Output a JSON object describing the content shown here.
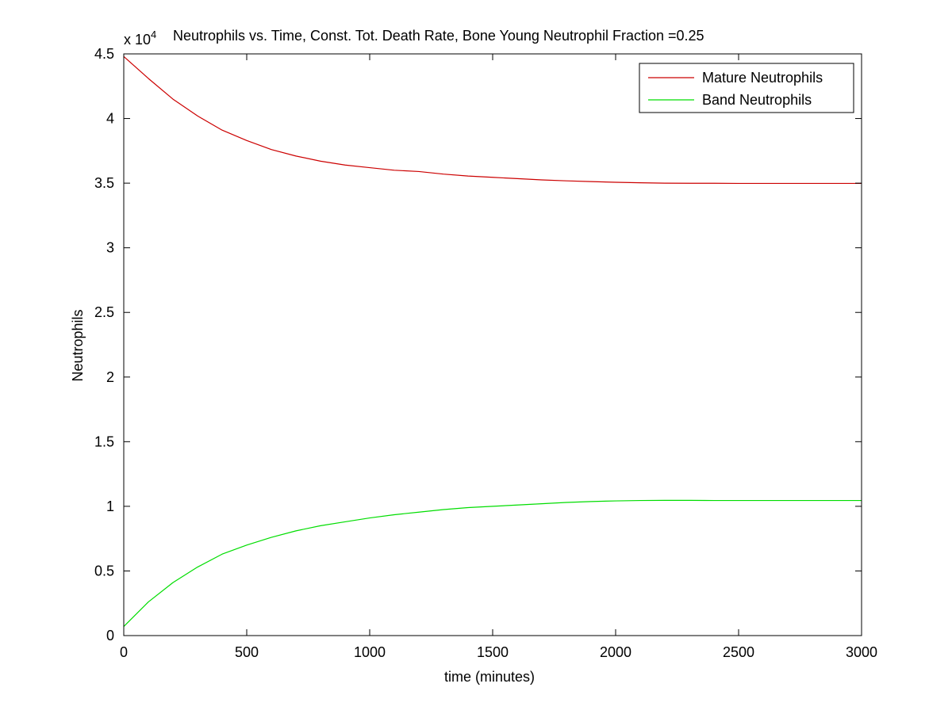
{
  "chart_data": {
    "type": "line",
    "title": "Neutrophils vs. Time, Const. Tot. Death Rate, Bone Young Neutrophil Fraction =0.25",
    "exponent_prefix": "x 10",
    "exponent_power": "4",
    "y_scale_factor": 10000,
    "xlabel": "time (minutes)",
    "ylabel": "Neutrophils",
    "xlim": [
      0,
      3000
    ],
    "ylim": [
      0,
      4.5
    ],
    "x_ticks": [
      0,
      500,
      1000,
      1500,
      2000,
      2500,
      3000
    ],
    "x_tick_labels": [
      "0",
      "500",
      "1000",
      "1500",
      "2000",
      "2500",
      "3000"
    ],
    "y_ticks": [
      0,
      0.5,
      1,
      1.5,
      2,
      2.5,
      3,
      3.5,
      4,
      4.5
    ],
    "y_tick_labels": [
      "0",
      "0.5",
      "1",
      "1.5",
      "2",
      "2.5",
      "3",
      "3.5",
      "4",
      "4.5"
    ],
    "grid": false,
    "legend_position": "top-right",
    "series": [
      {
        "name": "Mature Neutrophils",
        "color": "#cc0000",
        "x": [
          0,
          100,
          200,
          300,
          400,
          500,
          600,
          700,
          800,
          900,
          1000,
          1100,
          1200,
          1300,
          1400,
          1500,
          1600,
          1700,
          1800,
          1900,
          2000,
          2100,
          2200,
          2300,
          2400,
          2500,
          2600,
          2700,
          2800,
          2900,
          3000
        ],
        "values": [
          4.48,
          4.31,
          4.15,
          4.02,
          3.91,
          3.83,
          3.76,
          3.71,
          3.67,
          3.64,
          3.62,
          3.6,
          3.59,
          3.57,
          3.555,
          3.545,
          3.535,
          3.525,
          3.518,
          3.512,
          3.507,
          3.503,
          3.5,
          3.499,
          3.499,
          3.498,
          3.498,
          3.498,
          3.498,
          3.498,
          3.498
        ]
      },
      {
        "name": "Band Neutrophils",
        "color": "#00dd00",
        "x": [
          0,
          100,
          200,
          300,
          400,
          500,
          600,
          700,
          800,
          900,
          1000,
          1100,
          1200,
          1300,
          1400,
          1500,
          1600,
          1700,
          1800,
          1900,
          2000,
          2100,
          2200,
          2300,
          2400,
          2500,
          2600,
          2700,
          2800,
          2900,
          3000
        ],
        "values": [
          0.07,
          0.26,
          0.41,
          0.53,
          0.63,
          0.7,
          0.76,
          0.81,
          0.85,
          0.88,
          0.91,
          0.935,
          0.955,
          0.975,
          0.99,
          1.0,
          1.01,
          1.02,
          1.03,
          1.037,
          1.042,
          1.045,
          1.046,
          1.046,
          1.045,
          1.045,
          1.045,
          1.045,
          1.045,
          1.045,
          1.045
        ]
      }
    ]
  }
}
